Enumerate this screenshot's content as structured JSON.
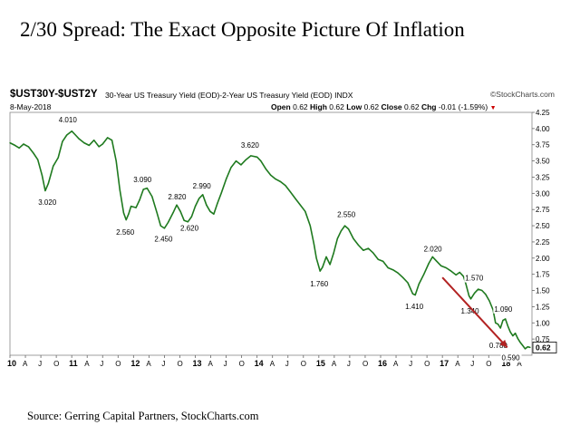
{
  "headline": "2/30 Spread: The Exact Opposite Picture Of Inflation",
  "source": "Source: Gerring Capital Partners, StockCharts.com",
  "chart_header": {
    "symbol": "$UST30Y-$UST2Y",
    "description": "30-Year US Treasury Yield (EOD)-2-Year US Treasury Yield (EOD)",
    "exchange": "INDX",
    "brand": "©StockCharts.com",
    "date": "8-May-2018",
    "open_label": "Open",
    "open": "0.62",
    "high_label": "High",
    "high": "0.62",
    "low_label": "Low",
    "low": "0.62",
    "close_label": "Close",
    "close": "0.62",
    "chg_label": "Chg",
    "chg": "-0.01 (-1.59%)",
    "chg_arrow": "▼"
  },
  "chart_data": {
    "type": "line",
    "title": "",
    "xlabel": "",
    "ylabel": "",
    "line_color": "#1f7a1f",
    "arrow_color": "#b22222",
    "last_value_label": "0.62",
    "ylim": [
      0.5,
      4.25
    ],
    "xlim": [
      2010.0,
      2018.45
    ],
    "yticks": [
      "4.25",
      "4.00",
      "3.75",
      "3.50",
      "3.25",
      "3.00",
      "2.75",
      "2.50",
      "2.25",
      "2.00",
      "1.75",
      "1.50",
      "1.25",
      "1.00",
      "0.75"
    ],
    "ytick_values": [
      4.25,
      4.0,
      3.75,
      3.5,
      3.25,
      3.0,
      2.75,
      2.5,
      2.25,
      2.0,
      1.75,
      1.5,
      1.25,
      1.0,
      0.75
    ],
    "xticks": [
      {
        "t": 2010.0,
        "label": "10",
        "year": true
      },
      {
        "t": 2010.25,
        "label": "A"
      },
      {
        "t": 2010.5,
        "label": "J"
      },
      {
        "t": 2010.75,
        "label": "O"
      },
      {
        "t": 2011.0,
        "label": "11",
        "year": true
      },
      {
        "t": 2011.25,
        "label": "A"
      },
      {
        "t": 2011.5,
        "label": "J"
      },
      {
        "t": 2011.75,
        "label": "O"
      },
      {
        "t": 2012.0,
        "label": "12",
        "year": true
      },
      {
        "t": 2012.25,
        "label": "A"
      },
      {
        "t": 2012.5,
        "label": "J"
      },
      {
        "t": 2012.75,
        "label": "O"
      },
      {
        "t": 2013.0,
        "label": "13",
        "year": true
      },
      {
        "t": 2013.25,
        "label": "A"
      },
      {
        "t": 2013.5,
        "label": "J"
      },
      {
        "t": 2013.75,
        "label": "O"
      },
      {
        "t": 2014.0,
        "label": "14",
        "year": true
      },
      {
        "t": 2014.25,
        "label": "A"
      },
      {
        "t": 2014.5,
        "label": "J"
      },
      {
        "t": 2014.75,
        "label": "O"
      },
      {
        "t": 2015.0,
        "label": "15",
        "year": true
      },
      {
        "t": 2015.25,
        "label": "A"
      },
      {
        "t": 2015.5,
        "label": "J"
      },
      {
        "t": 2015.75,
        "label": "O"
      },
      {
        "t": 2016.0,
        "label": "16",
        "year": true
      },
      {
        "t": 2016.25,
        "label": "A"
      },
      {
        "t": 2016.5,
        "label": "J"
      },
      {
        "t": 2016.75,
        "label": "O"
      },
      {
        "t": 2017.0,
        "label": "17",
        "year": true
      },
      {
        "t": 2017.25,
        "label": "A"
      },
      {
        "t": 2017.5,
        "label": "J"
      },
      {
        "t": 2017.75,
        "label": "O"
      },
      {
        "t": 2018.0,
        "label": "18",
        "year": true
      },
      {
        "t": 2018.25,
        "label": "A"
      }
    ],
    "series": [
      {
        "points": [
          [
            2010.0,
            3.78
          ],
          [
            2010.08,
            3.74
          ],
          [
            2010.15,
            3.7
          ],
          [
            2010.22,
            3.76
          ],
          [
            2010.3,
            3.72
          ],
          [
            2010.38,
            3.62
          ],
          [
            2010.45,
            3.52
          ],
          [
            2010.52,
            3.28
          ],
          [
            2010.57,
            3.04
          ],
          [
            2010.62,
            3.15
          ],
          [
            2010.7,
            3.42
          ],
          [
            2010.78,
            3.55
          ],
          [
            2010.85,
            3.8
          ],
          [
            2010.92,
            3.9
          ],
          [
            2011.0,
            3.96
          ],
          [
            2011.06,
            3.9
          ],
          [
            2011.12,
            3.84
          ],
          [
            2011.2,
            3.78
          ],
          [
            2011.28,
            3.74
          ],
          [
            2011.36,
            3.82
          ],
          [
            2011.44,
            3.72
          ],
          [
            2011.5,
            3.76
          ],
          [
            2011.58,
            3.86
          ],
          [
            2011.65,
            3.82
          ],
          [
            2011.72,
            3.5
          ],
          [
            2011.78,
            3.05
          ],
          [
            2011.84,
            2.7
          ],
          [
            2011.88,
            2.59
          ],
          [
            2011.92,
            2.68
          ],
          [
            2011.96,
            2.8
          ],
          [
            2012.04,
            2.78
          ],
          [
            2012.1,
            2.9
          ],
          [
            2012.16,
            3.06
          ],
          [
            2012.22,
            3.08
          ],
          [
            2012.3,
            2.95
          ],
          [
            2012.38,
            2.7
          ],
          [
            2012.44,
            2.5
          ],
          [
            2012.5,
            2.46
          ],
          [
            2012.56,
            2.55
          ],
          [
            2012.64,
            2.7
          ],
          [
            2012.7,
            2.82
          ],
          [
            2012.76,
            2.72
          ],
          [
            2012.82,
            2.58
          ],
          [
            2012.88,
            2.56
          ],
          [
            2012.94,
            2.64
          ],
          [
            2013.0,
            2.8
          ],
          [
            2013.06,
            2.92
          ],
          [
            2013.12,
            2.98
          ],
          [
            2013.18,
            2.82
          ],
          [
            2013.24,
            2.72
          ],
          [
            2013.3,
            2.68
          ],
          [
            2013.36,
            2.85
          ],
          [
            2013.42,
            3.0
          ],
          [
            2013.5,
            3.22
          ],
          [
            2013.58,
            3.4
          ],
          [
            2013.66,
            3.5
          ],
          [
            2013.74,
            3.44
          ],
          [
            2013.82,
            3.52
          ],
          [
            2013.9,
            3.58
          ],
          [
            2014.0,
            3.56
          ],
          [
            2014.06,
            3.5
          ],
          [
            2014.14,
            3.38
          ],
          [
            2014.22,
            3.28
          ],
          [
            2014.3,
            3.22
          ],
          [
            2014.38,
            3.18
          ],
          [
            2014.46,
            3.12
          ],
          [
            2014.54,
            3.02
          ],
          [
            2014.62,
            2.92
          ],
          [
            2014.7,
            2.82
          ],
          [
            2014.78,
            2.72
          ],
          [
            2014.86,
            2.5
          ],
          [
            2014.92,
            2.22
          ],
          [
            2014.96,
            2.0
          ],
          [
            2015.02,
            1.8
          ],
          [
            2015.06,
            1.86
          ],
          [
            2015.12,
            2.02
          ],
          [
            2015.18,
            1.9
          ],
          [
            2015.24,
            2.08
          ],
          [
            2015.3,
            2.3
          ],
          [
            2015.36,
            2.42
          ],
          [
            2015.42,
            2.5
          ],
          [
            2015.48,
            2.45
          ],
          [
            2015.56,
            2.3
          ],
          [
            2015.64,
            2.2
          ],
          [
            2015.72,
            2.12
          ],
          [
            2015.8,
            2.15
          ],
          [
            2015.88,
            2.08
          ],
          [
            2015.96,
            1.98
          ],
          [
            2016.04,
            1.95
          ],
          [
            2016.12,
            1.85
          ],
          [
            2016.2,
            1.82
          ],
          [
            2016.28,
            1.77
          ],
          [
            2016.36,
            1.7
          ],
          [
            2016.44,
            1.62
          ],
          [
            2016.52,
            1.45
          ],
          [
            2016.56,
            1.43
          ],
          [
            2016.62,
            1.6
          ],
          [
            2016.7,
            1.75
          ],
          [
            2016.78,
            1.92
          ],
          [
            2016.84,
            2.02
          ],
          [
            2016.9,
            1.96
          ],
          [
            2016.98,
            1.88
          ],
          [
            2017.06,
            1.85
          ],
          [
            2017.14,
            1.8
          ],
          [
            2017.22,
            1.74
          ],
          [
            2017.28,
            1.78
          ],
          [
            2017.34,
            1.72
          ],
          [
            2017.38,
            1.6
          ],
          [
            2017.43,
            1.42
          ],
          [
            2017.46,
            1.37
          ],
          [
            2017.52,
            1.46
          ],
          [
            2017.58,
            1.52
          ],
          [
            2017.64,
            1.5
          ],
          [
            2017.7,
            1.44
          ],
          [
            2017.76,
            1.34
          ],
          [
            2017.82,
            1.2
          ],
          [
            2017.86,
            1.0
          ],
          [
            2017.9,
            0.98
          ],
          [
            2017.94,
            0.92
          ],
          [
            2017.98,
            1.04
          ],
          [
            2018.02,
            1.06
          ],
          [
            2018.06,
            0.95
          ],
          [
            2018.1,
            0.86
          ],
          [
            2018.14,
            0.8
          ],
          [
            2018.18,
            0.84
          ],
          [
            2018.22,
            0.76
          ],
          [
            2018.26,
            0.7
          ],
          [
            2018.3,
            0.65
          ],
          [
            2018.34,
            0.6
          ],
          [
            2018.38,
            0.63
          ],
          [
            2018.42,
            0.62
          ]
        ]
      }
    ],
    "annotations": [
      {
        "t": 2010.62,
        "y": 3.02,
        "label": "3.020",
        "pos": "below"
      },
      {
        "t": 2010.95,
        "y": 4.01,
        "label": "4.010",
        "pos": "above"
      },
      {
        "t": 2011.88,
        "y": 2.56,
        "label": "2.560",
        "pos": "below"
      },
      {
        "t": 2012.16,
        "y": 3.09,
        "label": "3.090",
        "pos": "above"
      },
      {
        "t": 2012.5,
        "y": 2.45,
        "label": "2.450",
        "pos": "below"
      },
      {
        "t": 2012.72,
        "y": 2.82,
        "label": "2.820",
        "pos": "above"
      },
      {
        "t": 2012.92,
        "y": 2.62,
        "label": "2.620",
        "pos": "below"
      },
      {
        "t": 2013.12,
        "y": 2.99,
        "label": "2.990",
        "pos": "above"
      },
      {
        "t": 2013.9,
        "y": 3.62,
        "label": "3.620",
        "pos": "above"
      },
      {
        "t": 2015.02,
        "y": 1.76,
        "label": "1.760",
        "pos": "below"
      },
      {
        "t": 2015.46,
        "y": 2.55,
        "label": "2.550",
        "pos": "above"
      },
      {
        "t": 2016.56,
        "y": 1.41,
        "label": "1.410",
        "pos": "below"
      },
      {
        "t": 2016.86,
        "y": 2.02,
        "label": "2.020",
        "pos": "above"
      },
      {
        "t": 2017.53,
        "y": 1.57,
        "label": "1.570",
        "pos": "above"
      },
      {
        "t": 2017.46,
        "y": 1.34,
        "label": "1.340",
        "pos": "below"
      },
      {
        "t": 2018.0,
        "y": 1.09,
        "label": "1.090",
        "pos": "above"
      },
      {
        "t": 2018.14,
        "y": 0.78,
        "label": "0.780",
        "pos": "below-left"
      },
      {
        "t": 2018.34,
        "y": 0.59,
        "label": "0.590",
        "pos": "below-left"
      }
    ],
    "arrow": {
      "from": [
        2017.0,
        1.7
      ],
      "to": [
        2018.05,
        0.62
      ]
    }
  }
}
